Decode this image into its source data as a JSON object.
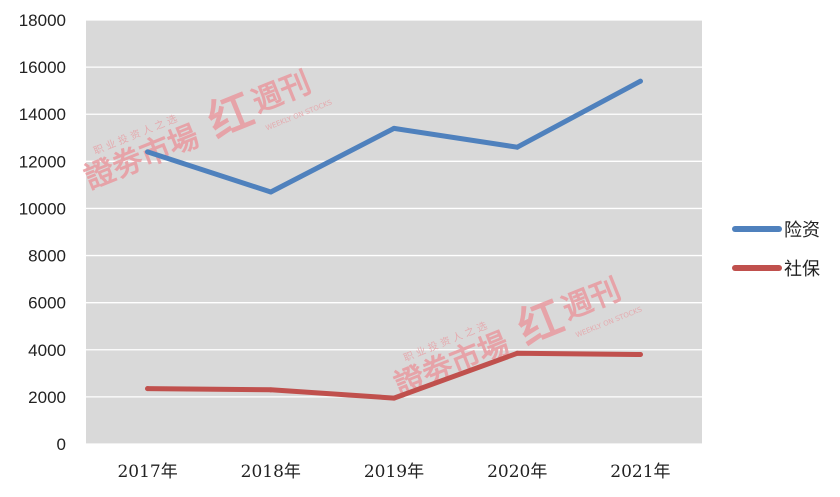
{
  "chart_data": {
    "type": "line",
    "categories": [
      "2017年",
      "2018年",
      "2019年",
      "2020年",
      "2021年"
    ],
    "series": [
      {
        "name": "险资",
        "color": "#4f81bd",
        "values": [
          12400,
          10700,
          13400,
          12600,
          15400
        ]
      },
      {
        "name": "社保",
        "color": "#c0504d",
        "values": [
          2350,
          2300,
          1950,
          3850,
          3800
        ]
      }
    ],
    "ylim": [
      0,
      18000
    ],
    "yticks": [
      "0",
      "2000",
      "4000",
      "6000",
      "8000",
      "10000",
      "12000",
      "14000",
      "16000",
      "18000"
    ],
    "grid": true,
    "legend_position": "right",
    "plot_background": "#d9d9d9"
  },
  "watermark": {
    "main": "證劵市場",
    "mark": "红",
    "brand": "週刊",
    "motto": "职 业 投 资 人 之 选",
    "english": "WEEKLY ON STOCKS"
  }
}
